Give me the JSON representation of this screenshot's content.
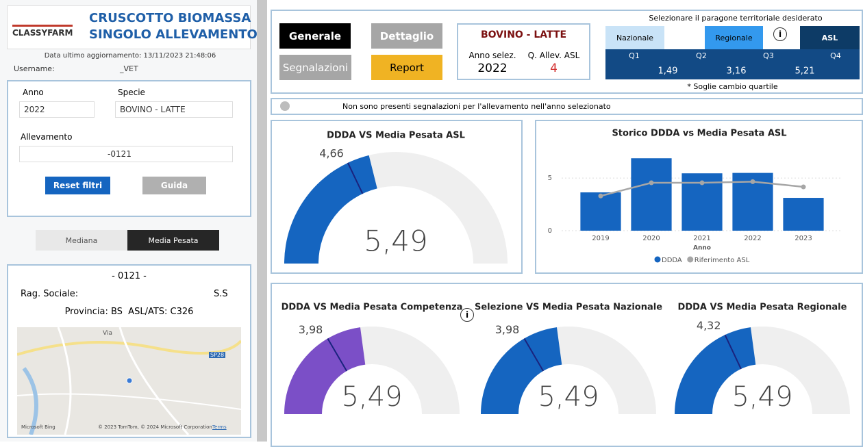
{
  "header": {
    "title_line1": "CRUSCOTTO BIOMASSA",
    "title_line2": "SINGOLO ALLEVAMENTO",
    "logo": "CLASSYFARM",
    "updated": "Data ultimo aggiornamento: 13/11/2023 21:48:06",
    "username_label": "Username:",
    "username": "_VET"
  },
  "filters": {
    "anno_label": "Anno",
    "anno": "2022",
    "specie_label": "Specie",
    "specie": "BOVINO - LATTE",
    "allevamento_label": "Allevamento",
    "allevamento": "-0121",
    "reset": "Reset filtri",
    "guida": "Guida"
  },
  "toggle": [
    "Mediana",
    "Media Pesata"
  ],
  "farm": {
    "code": "- 0121 -",
    "rag_label": "Rag. Sociale:",
    "rag_suffix": "S.S",
    "provincia": "Provincia: BS  ASL/ATS: C326",
    "map_road": "Via",
    "map_sp": "SP28",
    "map_bing": "Microsoft Bing",
    "map_credit": "© 2023 TomTom, © 2024 Microsoft Corporation",
    "map_terms": "Terms"
  },
  "nav": [
    "Generale",
    "Dettaglio",
    "Segnalazioni",
    "Report"
  ],
  "selection": {
    "title": "BOVINO - LATTE",
    "anno_label": "Anno selez.",
    "anno": "2022",
    "q_label": "Q. Allev. ASL",
    "q": "4"
  },
  "territory": {
    "title": "Selezionare il paragone territoriale desiderato",
    "options": [
      "Nazionale",
      "Regionale",
      "ASL"
    ],
    "quartiles": [
      "Q1",
      "Q2",
      "Q3",
      "Q4"
    ],
    "thresholds": [
      {
        "value": 1.49,
        "label": "1,49"
      },
      {
        "value": 3.16,
        "label": "3,16"
      },
      {
        "value": 5.21,
        "label": "5,21"
      }
    ],
    "note": "* Soglie cambio quartile"
  },
  "alert": "Non sono presenti segnalazioni per l'allevamento nell'anno selezionato",
  "gauges": [
    {
      "type": "gauge",
      "title": "DDDA VS Media Pesata ASL",
      "value": 5.49,
      "value_label": "5,49",
      "target": 4.66,
      "target_label": "4,66",
      "range": [
        0,
        13
      ],
      "color": "#1565c0"
    },
    {
      "type": "gauge",
      "title": "DDDA VS Media Pesata Competenza",
      "value": 5.49,
      "value_label": "5,49",
      "target": 3.98,
      "target_label": "3,98",
      "range": [
        0,
        12
      ],
      "color": "#7b4fc7"
    },
    {
      "type": "gauge",
      "title": "Selezione VS Media Pesata Nazionale",
      "value": 5.49,
      "value_label": "5,49",
      "target": 3.98,
      "target_label": "3,98",
      "range": [
        0,
        12
      ],
      "color": "#1565c0"
    },
    {
      "type": "gauge",
      "title": "DDDA VS Media Pesata Regionale",
      "value": 5.49,
      "value_label": "5,49",
      "target": 4.32,
      "target_label": "4,32",
      "range": [
        0,
        12
      ],
      "color": "#1565c0"
    }
  ],
  "history": {
    "type": "bar",
    "title": "Storico DDDA vs Media Pesata ASL",
    "categories": [
      "2019",
      "2020",
      "2021",
      "2022",
      "2023"
    ],
    "x_label": "Anno",
    "ylim": [
      0,
      8
    ],
    "yticks": [
      0,
      5
    ],
    "series": [
      {
        "name": "DDDA",
        "color": "#1565c0",
        "values": [
          3.64,
          6.88,
          5.45,
          5.49,
          3.12
        ]
      },
      {
        "name": "Riferimento ASL",
        "color": "#a6a6a6",
        "type": "line",
        "values": [
          3.3,
          4.55,
          4.55,
          4.66,
          4.16
        ]
      }
    ]
  }
}
